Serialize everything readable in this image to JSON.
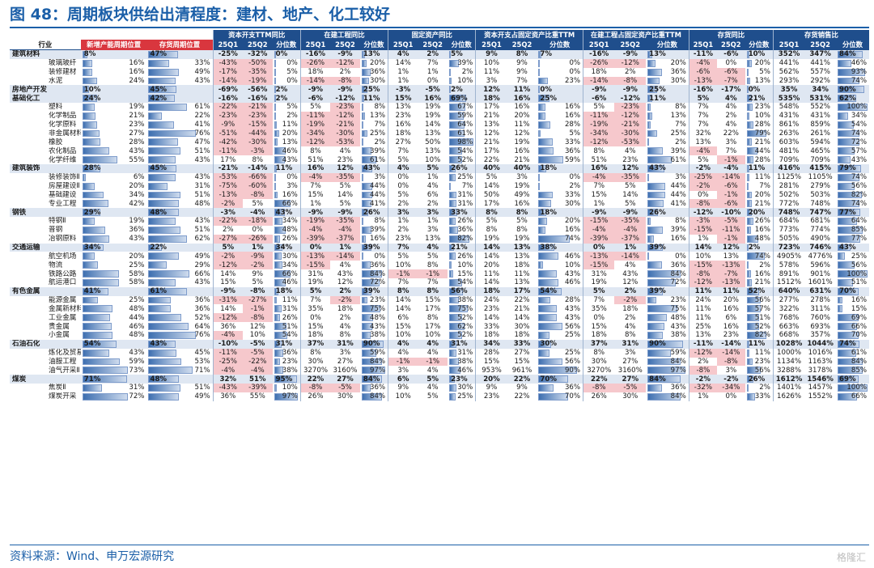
{
  "title": "图 48：周期板块供给出清程度：建材、地产、化工较好",
  "source": "资料来源：Wind、申万宏源研究",
  "watermark": "格隆汇",
  "header": {
    "groups": [
      "资本开支TTM同比",
      "在建工程同比",
      "固定资产同比",
      "资本开支占固定资产比重TTM",
      "在建工程占固定资产比重TTM",
      "存货同比",
      "存货销售比"
    ],
    "industry": "行业",
    "capacity_pos": "新增产能周期位置",
    "inventory_pos": "存货周期位置",
    "sub": [
      "25Q1",
      "25Q2",
      "分位数"
    ]
  },
  "colors": {
    "header_blue": "#1f4e8c",
    "header_red": "#d9363e",
    "negative_fill": "#f6c8cc",
    "group_row": "#dfe7f2",
    "title_blue": "#1b5fa8"
  },
  "rows": [
    {
      "g": 1,
      "name": "建筑材料",
      "cp": "8%",
      "ip": "47%",
      "v": [
        "-25%",
        "-32%",
        "0%",
        "-16%",
        "-9%",
        "13%",
        "4%",
        "2%",
        "5%",
        "9%",
        "8%",
        "7%",
        "-16%",
        "-9%",
        "13%",
        "-11%",
        "-6%",
        "10%",
        "352%",
        "347%",
        "84%"
      ]
    },
    {
      "g": 0,
      "name": "玻璃玻纤",
      "cp": "16%",
      "ip": "33%",
      "v": [
        "-43%",
        "-50%",
        "0%",
        "-26%",
        "-12%",
        "20%",
        "14%",
        "7%",
        "39%",
        "10%",
        "9%",
        "0%",
        "-26%",
        "-12%",
        "20%",
        "-4%",
        "0%",
        "20%",
        "441%",
        "441%",
        "46%"
      ]
    },
    {
      "g": 0,
      "name": "装修建材",
      "cp": "16%",
      "ip": "49%",
      "v": [
        "-17%",
        "-35%",
        "5%",
        "18%",
        "2%",
        "36%",
        "1%",
        "1%",
        "2%",
        "11%",
        "9%",
        "0%",
        "18%",
        "2%",
        "36%",
        "-6%",
        "-6%",
        "5%",
        "562%",
        "557%",
        "93%"
      ]
    },
    {
      "g": 0,
      "name": "水泥",
      "cp": "24%",
      "ip": "43%",
      "v": [
        "-14%",
        "-19%",
        "0%",
        "-14%",
        "-8%",
        "30%",
        "1%",
        "0%",
        "10%",
        "3%",
        "7%",
        "23%",
        "-14%",
        "-8%",
        "30%",
        "-13%",
        "-7%",
        "13%",
        "293%",
        "292%",
        "74%"
      ]
    },
    {
      "g": 1,
      "name": "房地产开发",
      "cp": "10%",
      "ip": "45%",
      "v": [
        "-69%",
        "-56%",
        "2%",
        "-9%",
        "-9%",
        "25%",
        "-3%",
        "-5%",
        "2%",
        "12%",
        "11%",
        "0%",
        "-9%",
        "-9%",
        "25%",
        "-16%",
        "-17%",
        "0%",
        "35%",
        "34%",
        "90%"
      ]
    },
    {
      "g": 1,
      "name": "基础化工",
      "cp": "24%",
      "ip": "42%",
      "v": [
        "-16%",
        "-16%",
        "2%",
        "-6%",
        "-12%",
        "11%",
        "15%",
        "16%",
        "69%",
        "18%",
        "16%",
        "25%",
        "-6%",
        "-12%",
        "11%",
        "5%",
        "4%",
        "21%",
        "535%",
        "531%",
        "62%"
      ]
    },
    {
      "g": 0,
      "name": "塑料",
      "cp": "19%",
      "ip": "61%",
      "v": [
        "-22%",
        "-21%",
        "5%",
        "5%",
        "-23%",
        "8%",
        "13%",
        "19%",
        "67%",
        "17%",
        "16%",
        "16%",
        "5%",
        "-23%",
        "8%",
        "7%",
        "4%",
        "23%",
        "548%",
        "552%",
        "100%"
      ]
    },
    {
      "g": 0,
      "name": "化学制品",
      "cp": "21%",
      "ip": "22%",
      "v": [
        "-23%",
        "-23%",
        "2%",
        "-11%",
        "-12%",
        "13%",
        "23%",
        "19%",
        "59%",
        "21%",
        "20%",
        "16%",
        "-11%",
        "-12%",
        "13%",
        "7%",
        "2%",
        "10%",
        "431%",
        "431%",
        "34%"
      ]
    },
    {
      "g": 0,
      "name": "化学原料",
      "cp": "23%",
      "ip": "41%",
      "v": [
        "-9%",
        "-15%",
        "11%",
        "-19%",
        "-21%",
        "7%",
        "16%",
        "14%",
        "64%",
        "13%",
        "11%",
        "28%",
        "-19%",
        "-21%",
        "7%",
        "7%",
        "4%",
        "28%",
        "861%",
        "859%",
        "54%"
      ]
    },
    {
      "g": 0,
      "name": "非金属材料Ⅱ",
      "cp": "27%",
      "ip": "76%",
      "v": [
        "-51%",
        "-44%",
        "20%",
        "-34%",
        "-30%",
        "25%",
        "18%",
        "13%",
        "61%",
        "12%",
        "12%",
        "5%",
        "-34%",
        "-30%",
        "25%",
        "32%",
        "22%",
        "79%",
        "263%",
        "261%",
        "74%"
      ]
    },
    {
      "g": 0,
      "name": "橡胶",
      "cp": "28%",
      "ip": "47%",
      "v": [
        "-42%",
        "-30%",
        "13%",
        "-12%",
        "-53%",
        "2%",
        "27%",
        "50%",
        "98%",
        "21%",
        "19%",
        "33%",
        "-12%",
        "-53%",
        "2%",
        "13%",
        "3%",
        "21%",
        "603%",
        "594%",
        "72%"
      ]
    },
    {
      "g": 0,
      "name": "农化制品",
      "cp": "43%",
      "ip": "51%",
      "v": [
        "-11%",
        "-3%",
        "46%",
        "8%",
        "4%",
        "39%",
        "7%",
        "13%",
        "54%",
        "17%",
        "16%",
        "36%",
        "8%",
        "4%",
        "39%",
        "-4%",
        "7%",
        "44%",
        "481%",
        "465%",
        "57%"
      ]
    },
    {
      "g": 0,
      "name": "化学纤维",
      "cp": "55%",
      "ip": "43%",
      "v": [
        "17%",
        "8%",
        "43%",
        "51%",
        "23%",
        "61%",
        "5%",
        "10%",
        "52%",
        "22%",
        "21%",
        "59%",
        "51%",
        "23%",
        "61%",
        "5%",
        "-1%",
        "28%",
        "709%",
        "709%",
        "43%"
      ]
    },
    {
      "g": 1,
      "name": "建筑装饰",
      "cp": "28%",
      "ip": "45%",
      "v": [
        "-21%",
        "-14%",
        "11%",
        "16%",
        "12%",
        "43%",
        "4%",
        "5%",
        "26%",
        "40%",
        "40%",
        "18%",
        "16%",
        "12%",
        "43%",
        "-2%",
        "-4%",
        "11%",
        "416%",
        "415%",
        "79%"
      ]
    },
    {
      "g": 0,
      "name": "装修装饰Ⅱ",
      "cp": "6%",
      "ip": "43%",
      "v": [
        "-53%",
        "-66%",
        "0%",
        "-4%",
        "-35%",
        "3%",
        "0%",
        "1%",
        "25%",
        "5%",
        "3%",
        "0%",
        "-4%",
        "-35%",
        "3%",
        "-25%",
        "-14%",
        "11%",
        "1125%",
        "1105%",
        "74%"
      ]
    },
    {
      "g": 0,
      "name": "房屋建设Ⅱ",
      "cp": "20%",
      "ip": "31%",
      "v": [
        "-75%",
        "-60%",
        "3%",
        "7%",
        "5%",
        "44%",
        "0%",
        "4%",
        "7%",
        "14%",
        "19%",
        "2%",
        "7%",
        "5%",
        "44%",
        "-2%",
        "-6%",
        "7%",
        "281%",
        "279%",
        "56%"
      ]
    },
    {
      "g": 0,
      "name": "基础建设",
      "cp": "34%",
      "ip": "51%",
      "v": [
        "-13%",
        "-8%",
        "16%",
        "15%",
        "14%",
        "44%",
        "5%",
        "6%",
        "31%",
        "50%",
        "49%",
        "33%",
        "15%",
        "14%",
        "44%",
        "0%",
        "-1%",
        "20%",
        "502%",
        "503%",
        "82%"
      ]
    },
    {
      "g": 0,
      "name": "专业工程",
      "cp": "42%",
      "ip": "48%",
      "v": [
        "-2%",
        "5%",
        "66%",
        "1%",
        "5%",
        "41%",
        "2%",
        "2%",
        "31%",
        "17%",
        "16%",
        "30%",
        "1%",
        "5%",
        "41%",
        "-8%",
        "-6%",
        "21%",
        "772%",
        "748%",
        "74%"
      ]
    },
    {
      "g": 1,
      "name": "钢铁",
      "cp": "29%",
      "ip": "48%",
      "v": [
        "-3%",
        "-4%",
        "43%",
        "-9%",
        "-9%",
        "26%",
        "3%",
        "3%",
        "33%",
        "8%",
        "8%",
        "18%",
        "-9%",
        "-9%",
        "26%",
        "-12%",
        "-10%",
        "20%",
        "748%",
        "747%",
        "77%"
      ]
    },
    {
      "g": 0,
      "name": "特钢Ⅱ",
      "cp": "19%",
      "ip": "43%",
      "v": [
        "-22%",
        "-18%",
        "34%",
        "-19%",
        "-35%",
        "8%",
        "1%",
        "1%",
        "26%",
        "5%",
        "5%",
        "20%",
        "-15%",
        "-35%",
        "8%",
        "-3%",
        "-5%",
        "26%",
        "684%",
        "681%",
        "64%"
      ]
    },
    {
      "g": 0,
      "name": "普钢",
      "cp": "36%",
      "ip": "51%",
      "v": [
        "2%",
        "0%",
        "48%",
        "-4%",
        "-4%",
        "39%",
        "2%",
        "3%",
        "36%",
        "8%",
        "8%",
        "16%",
        "-4%",
        "-4%",
        "39%",
        "-15%",
        "-11%",
        "16%",
        "773%",
        "774%",
        "85%"
      ]
    },
    {
      "g": 0,
      "name": "冶钢原料",
      "cp": "43%",
      "ip": "62%",
      "v": [
        "-27%",
        "-26%",
        "26%",
        "-39%",
        "-37%",
        "16%",
        "23%",
        "13%",
        "82%",
        "19%",
        "19%",
        "74%",
        "-39%",
        "-37%",
        "16%",
        "1%",
        "-1%",
        "48%",
        "505%",
        "490%",
        "77%"
      ]
    },
    {
      "g": 1,
      "name": "交通运输",
      "cp": "34%",
      "ip": "22%",
      "v": [
        "5%",
        "1%",
        "34%",
        "0%",
        "1%",
        "39%",
        "7%",
        "4%",
        "21%",
        "14%",
        "13%",
        "38%",
        "0%",
        "1%",
        "39%",
        "14%",
        "12%",
        "2%",
        "723%",
        "746%",
        "43%"
      ]
    },
    {
      "g": 0,
      "name": "航空机场",
      "cp": "20%",
      "ip": "49%",
      "v": [
        "-2%",
        "-9%",
        "30%",
        "-13%",
        "-14%",
        "0%",
        "5%",
        "5%",
        "26%",
        "14%",
        "13%",
        "46%",
        "-13%",
        "-14%",
        "0%",
        "10%",
        "13%",
        "74%",
        "4905%",
        "4776%",
        "25%"
      ]
    },
    {
      "g": 0,
      "name": "物流",
      "cp": "25%",
      "ip": "29%",
      "v": [
        "-12%",
        "-2%",
        "34%",
        "-15%",
        "4%",
        "36%",
        "10%",
        "8%",
        "10%",
        "20%",
        "18%",
        "10%",
        "-15%",
        "4%",
        "36%",
        "-15%",
        "-13%",
        "2%",
        "578%",
        "596%",
        "56%"
      ]
    },
    {
      "g": 0,
      "name": "铁路公路",
      "cp": "58%",
      "ip": "66%",
      "v": [
        "14%",
        "9%",
        "66%",
        "31%",
        "43%",
        "84%",
        "-1%",
        "-1%",
        "15%",
        "11%",
        "11%",
        "43%",
        "31%",
        "43%",
        "84%",
        "-8%",
        "-7%",
        "16%",
        "891%",
        "901%",
        "100%"
      ]
    },
    {
      "g": 0,
      "name": "航运港口",
      "cp": "58%",
      "ip": "43%",
      "v": [
        "15%",
        "5%",
        "46%",
        "19%",
        "12%",
        "72%",
        "7%",
        "7%",
        "54%",
        "14%",
        "13%",
        "46%",
        "19%",
        "12%",
        "72%",
        "-12%",
        "-13%",
        "21%",
        "1512%",
        "1601%",
        "51%"
      ]
    },
    {
      "g": 1,
      "name": "有色金属",
      "cp": "41%",
      "ip": "61%",
      "v": [
        "-9%",
        "-8%",
        "18%",
        "5%",
        "2%",
        "39%",
        "8%",
        "8%",
        "56%",
        "18%",
        "17%",
        "54%",
        "5%",
        "2%",
        "39%",
        "11%",
        "11%",
        "52%",
        "640%",
        "631%",
        "70%"
      ]
    },
    {
      "g": 0,
      "name": "能源金属",
      "cp": "25%",
      "ip": "36%",
      "v": [
        "-31%",
        "-27%",
        "11%",
        "7%",
        "-2%",
        "23%",
        "14%",
        "15%",
        "38%",
        "24%",
        "22%",
        "28%",
        "7%",
        "-2%",
        "23%",
        "24%",
        "20%",
        "56%",
        "277%",
        "278%",
        "16%"
      ]
    },
    {
      "g": 0,
      "name": "金属新材料",
      "cp": "48%",
      "ip": "36%",
      "v": [
        "14%",
        "-1%",
        "31%",
        "35%",
        "18%",
        "75%",
        "14%",
        "17%",
        "75%",
        "23%",
        "21%",
        "43%",
        "35%",
        "18%",
        "75%",
        "11%",
        "16%",
        "57%",
        "322%",
        "311%",
        "15%"
      ]
    },
    {
      "g": 0,
      "name": "工业金属",
      "cp": "44%",
      "ip": "52%",
      "v": [
        "-12%",
        "-8%",
        "26%",
        "0%",
        "2%",
        "48%",
        "6%",
        "8%",
        "52%",
        "14%",
        "14%",
        "43%",
        "0%",
        "2%",
        "48%",
        "11%",
        "6%",
        "51%",
        "768%",
        "760%",
        "69%"
      ]
    },
    {
      "g": 0,
      "name": "贵金属",
      "cp": "46%",
      "ip": "64%",
      "v": [
        "36%",
        "12%",
        "51%",
        "15%",
        "4%",
        "43%",
        "15%",
        "17%",
        "62%",
        "33%",
        "30%",
        "56%",
        "15%",
        "4%",
        "43%",
        "25%",
        "16%",
        "52%",
        "663%",
        "693%",
        "66%"
      ]
    },
    {
      "g": 0,
      "name": "小金属",
      "cp": "48%",
      "ip": "76%",
      "v": [
        "-4%",
        "10%",
        "54%",
        "18%",
        "8%",
        "38%",
        "10%",
        "10%",
        "52%",
        "18%",
        "18%",
        "25%",
        "18%",
        "8%",
        "38%",
        "13%",
        "23%",
        "82%",
        "668%",
        "357%",
        "70%"
      ]
    },
    {
      "g": 1,
      "name": "石油石化",
      "cp": "54%",
      "ip": "43%",
      "v": [
        "-10%",
        "-5%",
        "31%",
        "37%",
        "31%",
        "90%",
        "4%",
        "4%",
        "31%",
        "34%",
        "33%",
        "30%",
        "37%",
        "31%",
        "90%",
        "-11%",
        "-14%",
        "11%",
        "1028%",
        "1044%",
        "74%"
      ]
    },
    {
      "g": 0,
      "name": "炼化及贸易",
      "cp": "43%",
      "ip": "45%",
      "v": [
        "-11%",
        "-5%",
        "36%",
        "8%",
        "3%",
        "59%",
        "4%",
        "4%",
        "31%",
        "28%",
        "27%",
        "25%",
        "8%",
        "3%",
        "59%",
        "-12%",
        "-14%",
        "11%",
        "1000%",
        "1016%",
        "61%"
      ]
    },
    {
      "g": 0,
      "name": "油服工程",
      "cp": "59%",
      "ip": "53%",
      "v": [
        "-25%",
        "-22%",
        "23%",
        "30%",
        "27%",
        "84%",
        "-1%",
        "-1%",
        "38%",
        "15%",
        "15%",
        "56%",
        "30%",
        "27%",
        "84%",
        "2%",
        "-8%",
        "23%",
        "1134%",
        "1163%",
        "84%"
      ]
    },
    {
      "g": 0,
      "name": "油气开采Ⅱ",
      "cp": "73%",
      "ip": "71%",
      "v": [
        "-4%",
        "-4%",
        "38%",
        "3270%",
        "3160%",
        "97%",
        "3%",
        "4%",
        "46%",
        "953%",
        "961%",
        "90%",
        "3270%",
        "3160%",
        "97%",
        "-8%",
        "3%",
        "56%",
        "3288%",
        "3178%",
        "85%"
      ]
    },
    {
      "g": 1,
      "name": "煤炭",
      "cp": "71%",
      "ip": "48%",
      "v": [
        "32%",
        "51%",
        "95%",
        "22%",
        "27%",
        "84%",
        "6%",
        "5%",
        "23%",
        "20%",
        "22%",
        "70%",
        "22%",
        "27%",
        "84%",
        "-2%",
        "-2%",
        "26%",
        "1612%",
        "1546%",
        "69%"
      ]
    },
    {
      "g": 0,
      "name": "焦炭Ⅱ",
      "cp": "31%",
      "ip": "51%",
      "v": [
        "-43%",
        "-39%",
        "10%",
        "-8%",
        "-5%",
        "36%",
        "9%",
        "4%",
        "30%",
        "9%",
        "9%",
        "36%",
        "-8%",
        "-5%",
        "36%",
        "-32%",
        "-34%",
        "2%",
        "1401%",
        "1457%",
        "100%"
      ]
    },
    {
      "g": 0,
      "name": "煤炭开采",
      "cp": "72%",
      "ip": "49%",
      "v": [
        "36%",
        "55%",
        "97%",
        "26%",
        "30%",
        "84%",
        "10%",
        "5%",
        "25%",
        "23%",
        "22%",
        "70%",
        "26%",
        "30%",
        "84%",
        "1%",
        "0%",
        "33%",
        "1626%",
        "1552%",
        "66%"
      ]
    }
  ]
}
